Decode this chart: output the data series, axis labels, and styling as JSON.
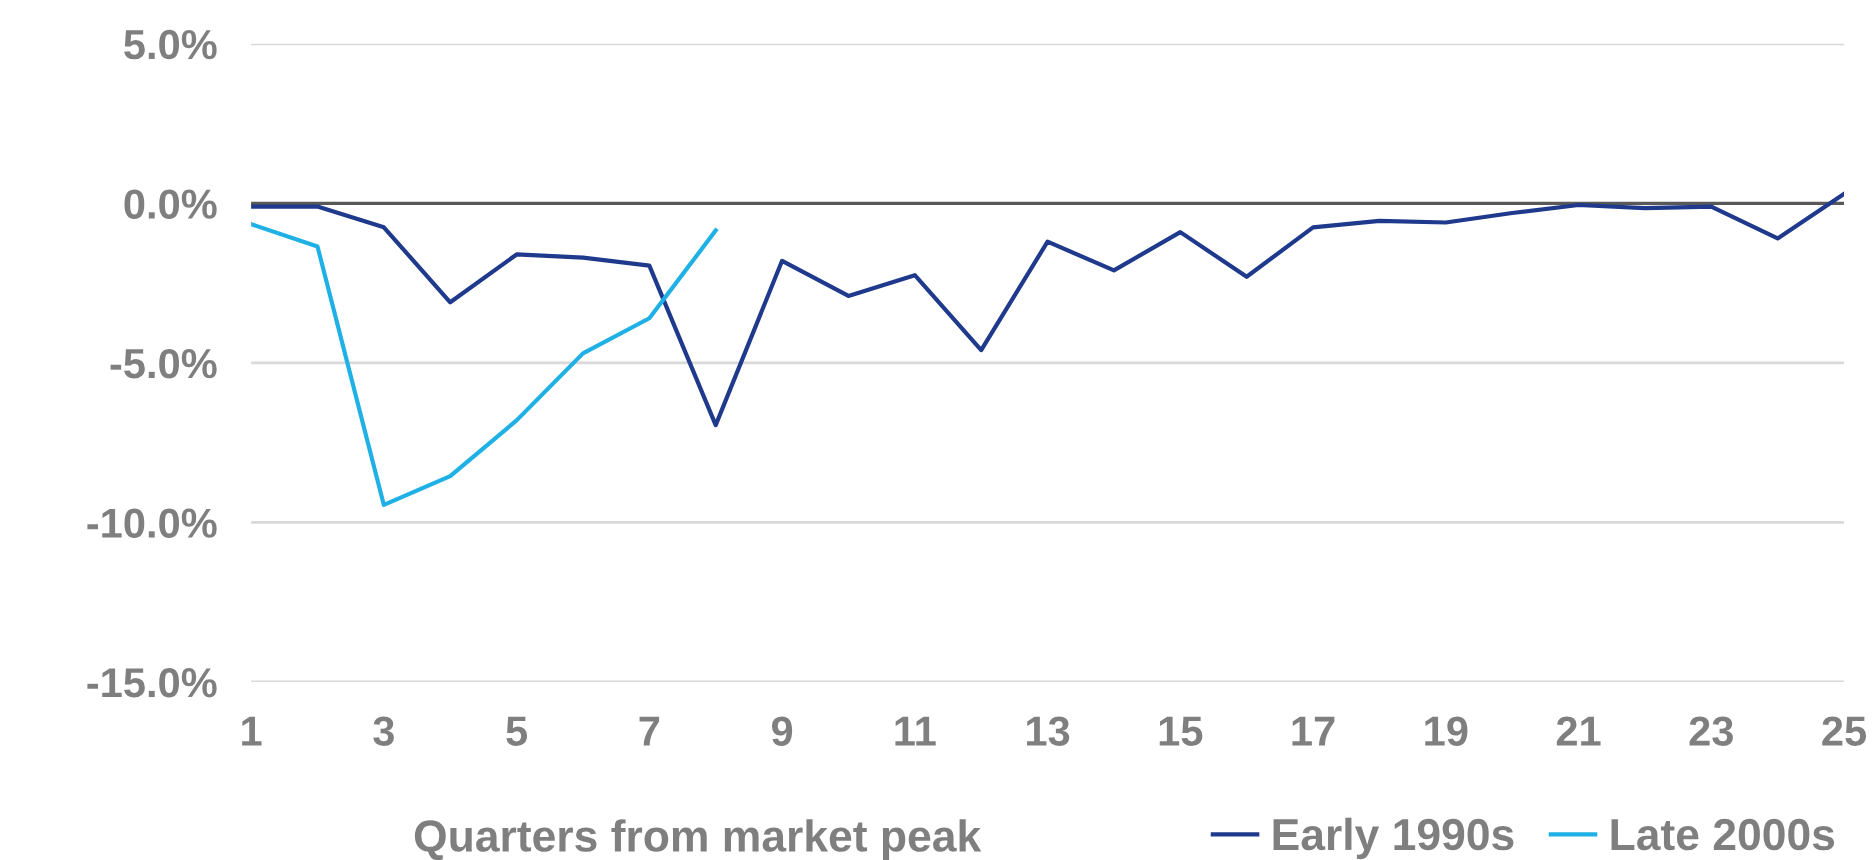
{
  "chart_data": {
    "type": "line",
    "xlabel": "Quarters from market peak",
    "xlim": [
      1,
      25
    ],
    "xticks": [
      1,
      3,
      5,
      7,
      9,
      11,
      13,
      15,
      17,
      19,
      21,
      23,
      25
    ],
    "ylim": [
      -15,
      5
    ],
    "yticks": [
      {
        "value": 5,
        "label": "5.0%"
      },
      {
        "value": 0,
        "label": "0.0%"
      },
      {
        "value": -5,
        "label": "-5.0%"
      },
      {
        "value": -10,
        "label": "-10.0%"
      },
      {
        "value": -15,
        "label": "-15.0%"
      }
    ],
    "grid": "y",
    "legend": "bottom right",
    "marker": "none",
    "line_style": "solid",
    "ref_lines": [
      {
        "axis": "y",
        "value": 0,
        "color": "#595959"
      }
    ],
    "series": [
      {
        "name": "Early 1990s",
        "color": "#1f3a8c",
        "x": [
          1,
          2,
          3,
          4,
          5,
          6,
          7,
          8,
          9,
          10,
          11,
          12,
          13,
          14,
          15,
          16,
          17,
          18,
          19,
          20,
          21,
          22,
          23,
          24,
          25
        ],
        "values": [
          -0.1,
          -0.1,
          -0.75,
          -3.1,
          -1.6,
          -1.7,
          -1.95,
          -6.95,
          -1.8,
          -2.9,
          -2.25,
          -4.6,
          -1.2,
          -2.1,
          -0.9,
          -2.3,
          -0.75,
          -0.55,
          -0.6,
          -0.3,
          -0.05,
          -0.15,
          -0.1,
          -1.1,
          0.3
        ]
      },
      {
        "name": "Late 2000s",
        "color": "#1fb1e6",
        "x": [
          1,
          2,
          3,
          4,
          5,
          6,
          7,
          8
        ],
        "values": [
          -0.65,
          -1.35,
          -9.45,
          -8.55,
          -6.8,
          -4.7,
          -3.6,
          -0.85
        ]
      }
    ]
  }
}
